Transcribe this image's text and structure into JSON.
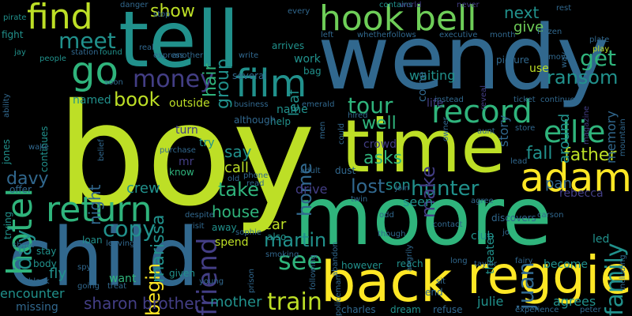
{
  "palette": {
    "background": "#000000",
    "yellow_green": "#bddf26",
    "yellow": "#fde725",
    "teal": "#21918c",
    "green": "#2fb47c",
    "blue": "#31688e",
    "indigo": "#433e85",
    "purple": "#472d7b",
    "dark_purple": "#440154",
    "light_green": "#6ece58"
  },
  "words": [
    {
      "text": "boy",
      "color": "#bddf26"
    },
    {
      "text": "wendy",
      "color": "#31688e"
    },
    {
      "text": "tell",
      "color": "#21918c"
    },
    {
      "text": "moore",
      "color": "#2fb47c"
    },
    {
      "text": "time",
      "color": "#bddf26"
    },
    {
      "text": "child",
      "color": "#31688e"
    },
    {
      "text": "back",
      "color": "#fde725"
    },
    {
      "text": "reggie",
      "color": "#fde725"
    },
    {
      "text": "hook",
      "color": "#6ece58"
    },
    {
      "text": "bell",
      "color": "#6ece58"
    },
    {
      "text": "find",
      "color": "#bddf26"
    },
    {
      "text": "hotel",
      "color": "#2fb47c"
    },
    {
      "text": "adam",
      "color": "#fde725"
    },
    {
      "text": "return",
      "color": "#2fb47c"
    },
    {
      "text": "film",
      "color": "#21918c"
    },
    {
      "text": "record",
      "color": "#2fb47c"
    },
    {
      "text": "go",
      "color": "#2fb47c"
    },
    {
      "text": "money",
      "color": "#433e85"
    },
    {
      "text": "meet",
      "color": "#21918c"
    },
    {
      "text": "show",
      "color": "#bddf26"
    },
    {
      "text": "ellie",
      "color": "#2fb47c"
    },
    {
      "text": "hunter",
      "color": "#21918c"
    },
    {
      "text": "copy",
      "color": "#21918c"
    },
    {
      "text": "friend",
      "color": "#433e85"
    },
    {
      "text": "family",
      "color": "#21918c"
    },
    {
      "text": "see",
      "color": "#2fb47c"
    },
    {
      "text": "train",
      "color": "#bddf26"
    },
    {
      "text": "tour",
      "color": "#2fb47c"
    },
    {
      "text": "juan",
      "color": "#31688e"
    },
    {
      "text": "get",
      "color": "#2fb47c"
    },
    {
      "text": "ransom",
      "color": "#21918c"
    },
    {
      "text": "next",
      "color": "#21918c"
    },
    {
      "text": "give",
      "color": "#6ece58"
    },
    {
      "text": "martin",
      "color": "#21918c"
    },
    {
      "text": "lost",
      "color": "#31688e"
    },
    {
      "text": "take",
      "color": "#2fb47c"
    },
    {
      "text": "book",
      "color": "#bddf26"
    },
    {
      "text": "home",
      "color": "#31688e"
    },
    {
      "text": "make",
      "color": "#433e85"
    },
    {
      "text": "well",
      "color": "#2fb47c"
    },
    {
      "text": "asks",
      "color": "#2fb47c"
    },
    {
      "text": "father",
      "color": "#bddf26"
    },
    {
      "text": "fall",
      "color": "#21918c"
    },
    {
      "text": "day",
      "color": "#21918c"
    },
    {
      "text": "davy",
      "color": "#31688e"
    },
    {
      "text": "begin",
      "color": "#fde725"
    },
    {
      "text": "sharon",
      "color": "#433e85"
    },
    {
      "text": "brother",
      "color": "#433e85"
    },
    {
      "text": "mother",
      "color": "#21918c"
    },
    {
      "text": "marissa",
      "color": "#21918c"
    },
    {
      "text": "night",
      "color": "#31688e"
    },
    {
      "text": "crew",
      "color": "#21918c"
    },
    {
      "text": "house",
      "color": "#2fb47c"
    },
    {
      "text": "call",
      "color": "#bddf26"
    },
    {
      "text": "say",
      "color": "#21918c"
    },
    {
      "text": "group",
      "color": "#21918c"
    },
    {
      "text": "hair",
      "color": "#2fb47c"
    },
    {
      "text": "leaf",
      "color": "#21918c"
    },
    {
      "text": "story",
      "color": "#31688e"
    },
    {
      "text": "memory",
      "color": "#31688e"
    },
    {
      "text": "around",
      "color": "#21918c"
    },
    {
      "text": "pan",
      "color": "#31688e"
    },
    {
      "text": "rebecca",
      "color": "#433e85"
    },
    {
      "text": "son",
      "color": "#21918c"
    },
    {
      "text": "fly",
      "color": "#21918c"
    },
    {
      "text": "want",
      "color": "#2fb47c"
    },
    {
      "text": "encounter",
      "color": "#21918c"
    },
    {
      "text": "missing",
      "color": "#31688e"
    },
    {
      "text": "crowd",
      "color": "#433e85"
    },
    {
      "text": "drive",
      "color": "#433e85"
    },
    {
      "text": "seen",
      "color": "#21918c"
    },
    {
      "text": "club",
      "color": "#21918c"
    },
    {
      "text": "julie",
      "color": "#21918c"
    },
    {
      "text": "agrees",
      "color": "#21918c"
    },
    {
      "text": "become",
      "color": "#21918c"
    },
    {
      "text": "led",
      "color": "#21918c"
    },
    {
      "text": "theater",
      "color": "#21918c"
    },
    {
      "text": "dream",
      "color": "#21918c"
    },
    {
      "text": "refuse",
      "color": "#31688e"
    },
    {
      "text": "charles",
      "color": "#31688e"
    },
    {
      "text": "however",
      "color": "#21918c"
    },
    {
      "text": "reach",
      "color": "#21918c"
    },
    {
      "text": "car",
      "color": "#bddf26"
    },
    {
      "text": "also",
      "color": "#21918c"
    },
    {
      "text": "spend",
      "color": "#bddf26"
    },
    {
      "text": "away",
      "color": "#21918c"
    },
    {
      "text": "name",
      "color": "#21918c"
    },
    {
      "text": "work",
      "color": "#21918c"
    },
    {
      "text": "waiting",
      "color": "#21918c"
    },
    {
      "text": "outside",
      "color": "#bddf26"
    },
    {
      "text": "named",
      "color": "#21918c"
    },
    {
      "text": "try",
      "color": "#21918c"
    },
    {
      "text": "mr",
      "color": "#433e85"
    },
    {
      "text": "know",
      "color": "#2fb47c"
    },
    {
      "text": "turn",
      "color": "#433e85"
    },
    {
      "text": "use",
      "color": "#bddf26"
    },
    {
      "text": "come",
      "color": "#31688e"
    },
    {
      "text": "life",
      "color": "#433e85"
    },
    {
      "text": "jones",
      "color": "#21918c"
    },
    {
      "text": "offer",
      "color": "#31688e"
    },
    {
      "text": "stay",
      "color": "#21918c"
    },
    {
      "text": "body",
      "color": "#21918c"
    },
    {
      "text": "loan",
      "color": "#21918c"
    },
    {
      "text": "trying",
      "color": "#21918c"
    },
    {
      "text": "continues",
      "color": "#21918c"
    },
    {
      "text": "given",
      "color": "#21918c"
    },
    {
      "text": "dust",
      "color": "#31688e"
    },
    {
      "text": "help",
      "color": "#21918c"
    },
    {
      "text": "although",
      "color": "#31688e"
    },
    {
      "text": "several",
      "color": "#31688e"
    },
    {
      "text": "arrives",
      "color": "#21918c"
    },
    {
      "text": "bag",
      "color": "#21918c"
    },
    {
      "text": "picture",
      "color": "#31688e"
    },
    {
      "text": "contains",
      "color": "#21918c"
    },
    {
      "text": "danger",
      "color": "#31688e"
    },
    {
      "text": "pirate",
      "color": "#21918c"
    },
    {
      "text": "fight",
      "color": "#21918c"
    },
    {
      "text": "jay",
      "color": "#21918c"
    },
    {
      "text": "people",
      "color": "#21918c"
    },
    {
      "text": "station",
      "color": "#31688e"
    },
    {
      "text": "found",
      "color": "#21918c"
    },
    {
      "text": "real",
      "color": "#31688e"
    },
    {
      "text": "express",
      "color": "#31688e"
    },
    {
      "text": "another",
      "color": "#31688e"
    },
    {
      "text": "write",
      "color": "#31688e"
    },
    {
      "text": "stop",
      "color": "#31688e"
    },
    {
      "text": "every",
      "color": "#31688e"
    },
    {
      "text": "left",
      "color": "#31688e"
    },
    {
      "text": "whether",
      "color": "#31688e"
    },
    {
      "text": "follows",
      "color": "#31688e"
    },
    {
      "text": "world",
      "color": "#433e85"
    },
    {
      "text": "never",
      "color": "#433e85"
    },
    {
      "text": "executive",
      "color": "#31688e"
    },
    {
      "text": "month",
      "color": "#31688e"
    },
    {
      "text": "frozen",
      "color": "#31688e"
    },
    {
      "text": "rest",
      "color": "#31688e"
    },
    {
      "text": "way",
      "color": "#31688e"
    },
    {
      "text": "plate",
      "color": "#31688e"
    },
    {
      "text": "play",
      "color": "#bddf26"
    },
    {
      "text": "movie",
      "color": "#31688e"
    },
    {
      "text": "reveal",
      "color": "#433e85"
    },
    {
      "text": "instead",
      "color": "#31688e"
    },
    {
      "text": "ticket",
      "color": "#31688e"
    },
    {
      "text": "continue",
      "color": "#31688e"
    },
    {
      "text": "magazine",
      "color": "#433e85"
    },
    {
      "text": "business",
      "color": "#31688e"
    },
    {
      "text": "emerald",
      "color": "#31688e"
    },
    {
      "text": "could",
      "color": "#31688e"
    },
    {
      "text": "hired",
      "color": "#31688e"
    },
    {
      "text": "men",
      "color": "#31688e"
    },
    {
      "text": "ability",
      "color": "#31688e"
    },
    {
      "text": "wake",
      "color": "#31688e"
    },
    {
      "text": "spy",
      "color": "#31688e"
    },
    {
      "text": "purchase",
      "color": "#31688e"
    },
    {
      "text": "belief",
      "color": "#31688e"
    },
    {
      "text": "soon",
      "color": "#31688e"
    },
    {
      "text": "phone",
      "color": "#31688e"
    },
    {
      "text": "read",
      "color": "#31688e"
    },
    {
      "text": "old",
      "color": "#31688e"
    },
    {
      "text": "adult",
      "color": "#31688e"
    },
    {
      "text": "owner",
      "color": "#31688e"
    },
    {
      "text": "aunt",
      "color": "#31688e"
    },
    {
      "text": "store",
      "color": "#31688e"
    },
    {
      "text": "lead",
      "color": "#31688e"
    },
    {
      "text": "mountain",
      "color": "#31688e"
    },
    {
      "text": "carson",
      "color": "#31688e"
    },
    {
      "text": "agree",
      "color": "#31688e"
    },
    {
      "text": "twin",
      "color": "#31688e"
    },
    {
      "text": "join",
      "color": "#31688e"
    },
    {
      "text": "odd",
      "color": "#31688e"
    },
    {
      "text": "though",
      "color": "#31688e"
    },
    {
      "text": "angrily",
      "color": "#31688e"
    },
    {
      "text": "contact",
      "color": "#31688e"
    },
    {
      "text": "discovers",
      "color": "#31688e"
    },
    {
      "text": "jo",
      "color": "#31688e"
    },
    {
      "text": "taylor",
      "color": "#31688e"
    },
    {
      "text": "long",
      "color": "#31688e"
    },
    {
      "text": "fairy",
      "color": "#31688e"
    },
    {
      "text": "including",
      "color": "#31688e"
    },
    {
      "text": "despite",
      "color": "#31688e"
    },
    {
      "text": "visit",
      "color": "#31688e"
    },
    {
      "text": "sophie",
      "color": "#31688e"
    },
    {
      "text": "following",
      "color": "#31688e"
    },
    {
      "text": "abandon",
      "color": "#31688e"
    },
    {
      "text": "smoking",
      "color": "#31688e"
    },
    {
      "text": "prison",
      "color": "#31688e"
    },
    {
      "text": "policeman",
      "color": "#31688e"
    },
    {
      "text": "end",
      "color": "#31688e"
    },
    {
      "text": "sit",
      "color": "#31688e"
    },
    {
      "text": "experience",
      "color": "#31688e"
    },
    {
      "text": "peter",
      "color": "#31688e"
    },
    {
      "text": "black",
      "color": "#31688e"
    },
    {
      "text": "treat",
      "color": "#31688e"
    },
    {
      "text": "going",
      "color": "#31688e"
    },
    {
      "text": "leaving",
      "color": "#31688e"
    },
    {
      "text": "young",
      "color": "#31688e"
    },
    {
      "text": "share",
      "color": "#31688e"
    }
  ]
}
